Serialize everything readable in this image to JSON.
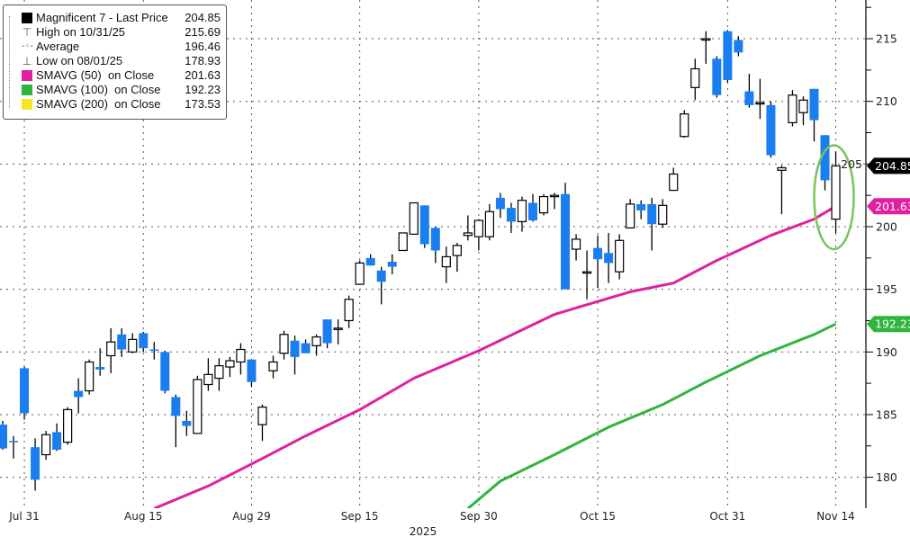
{
  "legend": {
    "title": "Magnificent 7 - Last Price",
    "last_price": "204.85",
    "items": [
      {
        "label": "High on 10/31/25",
        "value": "215.69",
        "icon": "high-marker-icon"
      },
      {
        "label": "Average",
        "value": "196.46",
        "icon": "average-marker-icon"
      },
      {
        "label": "Low on 08/01/25",
        "value": "178.93",
        "icon": "low-marker-icon"
      },
      {
        "label": "SMAVG (50)  on Close",
        "value": "201.63",
        "color": "#e020a0"
      },
      {
        "label": "SMAVG (100)  on Close",
        "value": "192.23",
        "color": "#2db53c"
      },
      {
        "label": "SMAVG (200)  on Close",
        "value": "173.53",
        "color": "#f5e625"
      }
    ]
  },
  "chart_data": {
    "type": "candlestick",
    "title": "",
    "xlabel": "2025",
    "ylabel": "",
    "ylim": [
      177.53,
      218.09
    ],
    "y_ticks": [
      180,
      185,
      190,
      195,
      200,
      205,
      210,
      215
    ],
    "y_tick_labels": [
      "180",
      "185",
      "190",
      "195",
      "200",
      "205",
      "210",
      "215"
    ],
    "x_tick_labels": [
      {
        "date": "2025-07-31",
        "label": "Jul 31"
      },
      {
        "date": "2025-08-15",
        "label": "Aug 15"
      },
      {
        "date": "2025-08-29",
        "label": "Aug 29"
      },
      {
        "date": "2025-09-15",
        "label": "Sep 15"
      },
      {
        "date": "2025-09-30",
        "label": "Sep 30"
      },
      {
        "date": "2025-10-15",
        "label": "Oct 15"
      },
      {
        "date": "2025-10-31",
        "label": "Oct 31"
      },
      {
        "date": "2025-11-14",
        "label": "Nov 14"
      }
    ],
    "grid": true,
    "axis_side": "right",
    "legend_position": "top-left",
    "colors": {
      "up": "#ffffff",
      "down": "#1a7ef0",
      "wick": "#000000",
      "sma50": "#e020a0",
      "sma100": "#2db53c",
      "annotation": "#7cc35c"
    },
    "candle_fields": [
      "date",
      "open",
      "high",
      "low",
      "close"
    ],
    "candles": [
      [
        "2025-07-29",
        184.2,
        184.5,
        182.2,
        182.3
      ],
      [
        "2025-07-30",
        182.9,
        183.3,
        181.5,
        182.8
      ],
      [
        "2025-07-31",
        188.7,
        188.8,
        184.6,
        185.1
      ],
      [
        "2025-08-01",
        182.4,
        183.1,
        178.93,
        179.8
      ],
      [
        "2025-08-04",
        181.8,
        183.7,
        181.4,
        183.4
      ],
      [
        "2025-08-05",
        183.6,
        184.3,
        182.1,
        182.2
      ],
      [
        "2025-08-06",
        182.8,
        185.6,
        182.6,
        185.4
      ],
      [
        "2025-08-07",
        186.9,
        187.9,
        185.1,
        186.4
      ],
      [
        "2025-08-08",
        186.9,
        189.4,
        186.6,
        189.2
      ],
      [
        "2025-08-11",
        188.8,
        190.3,
        188.1,
        188.6
      ],
      [
        "2025-08-12",
        189.7,
        191.9,
        188.3,
        190.8
      ],
      [
        "2025-08-13",
        191.4,
        191.9,
        189.6,
        190.2
      ],
      [
        "2025-08-14",
        190.0,
        191.5,
        189.9,
        191.0
      ],
      [
        "2025-08-15",
        191.5,
        191.6,
        190.0,
        190.3
      ],
      [
        "2025-08-18",
        190.2,
        190.8,
        189.4,
        190.1
      ],
      [
        "2025-08-19",
        190.0,
        190.1,
        186.7,
        186.9
      ],
      [
        "2025-08-20",
        186.4,
        186.6,
        182.4,
        184.9
      ],
      [
        "2025-08-21",
        184.5,
        185.3,
        183.3,
        184.1
      ],
      [
        "2025-08-22",
        183.5,
        188.1,
        183.5,
        187.8
      ],
      [
        "2025-08-25",
        187.4,
        189.5,
        186.9,
        188.2
      ],
      [
        "2025-08-26",
        187.9,
        189.5,
        186.9,
        188.9
      ],
      [
        "2025-08-27",
        188.8,
        189.6,
        188.0,
        189.3
      ],
      [
        "2025-08-28",
        189.2,
        190.7,
        188.2,
        190.2
      ],
      [
        "2025-08-29",
        189.4,
        189.4,
        187.2,
        187.6
      ],
      [
        "2025-09-02",
        184.2,
        185.8,
        182.9,
        185.6
      ],
      [
        "2025-09-03",
        188.5,
        189.7,
        187.9,
        189.2
      ],
      [
        "2025-09-04",
        189.9,
        191.7,
        189.4,
        191.4
      ],
      [
        "2025-09-05",
        190.9,
        191.3,
        188.2,
        189.6
      ],
      [
        "2025-09-08",
        190.7,
        191.0,
        189.9,
        189.9
      ],
      [
        "2025-09-09",
        190.5,
        191.4,
        189.7,
        191.2
      ],
      [
        "2025-09-10",
        192.6,
        192.6,
        190.3,
        190.7
      ],
      [
        "2025-09-11",
        191.9,
        192.6,
        190.6,
        191.9
      ],
      [
        "2025-09-12",
        192.5,
        194.5,
        191.9,
        194.2
      ],
      [
        "2025-09-15",
        195.4,
        197.3,
        195.4,
        197.1
      ],
      [
        "2025-09-16",
        197.5,
        197.8,
        196.9,
        196.9
      ],
      [
        "2025-09-17",
        196.5,
        196.8,
        193.8,
        195.6
      ],
      [
        "2025-09-18",
        197.2,
        197.8,
        196.2,
        196.8
      ],
      [
        "2025-09-19",
        198.1,
        199.5,
        198.1,
        199.5
      ],
      [
        "2025-09-22",
        199.4,
        201.9,
        199.4,
        201.9
      ],
      [
        "2025-09-23",
        201.7,
        201.7,
        198.3,
        198.6
      ],
      [
        "2025-09-24",
        199.9,
        200.0,
        197.1,
        198.1
      ],
      [
        "2025-09-25",
        196.8,
        198.4,
        195.5,
        197.6
      ],
      [
        "2025-09-26",
        197.7,
        198.7,
        196.4,
        198.5
      ],
      [
        "2025-09-29",
        199.3,
        200.9,
        198.9,
        199.5
      ],
      [
        "2025-09-30",
        199.2,
        200.6,
        198.1,
        200.5
      ],
      [
        "2025-10-01",
        199.2,
        201.8,
        198.9,
        201.2
      ],
      [
        "2025-10-02",
        202.3,
        202.7,
        200.7,
        201.4
      ],
      [
        "2025-10-03",
        201.5,
        201.9,
        199.5,
        200.4
      ],
      [
        "2025-10-06",
        200.4,
        202.4,
        199.6,
        202.1
      ],
      [
        "2025-10-07",
        201.9,
        202.6,
        200.4,
        200.5
      ],
      [
        "2025-10-08",
        201.1,
        202.6,
        200.9,
        202.4
      ],
      [
        "2025-10-09",
        202.4,
        202.7,
        201.4,
        202.5
      ],
      [
        "2025-10-10",
        202.6,
        203.5,
        195.0,
        195.0
      ],
      [
        "2025-10-13",
        198.2,
        199.4,
        197.3,
        199.0
      ],
      [
        "2025-10-14",
        196.4,
        198.1,
        194.2,
        196.4
      ],
      [
        "2025-10-15",
        198.3,
        199.3,
        195.1,
        197.4
      ],
      [
        "2025-10-16",
        197.9,
        199.5,
        195.5,
        197.1
      ],
      [
        "2025-10-17",
        196.4,
        199.4,
        195.8,
        198.9
      ],
      [
        "2025-10-20",
        199.9,
        202.2,
        199.9,
        201.8
      ],
      [
        "2025-10-21",
        201.8,
        202.1,
        200.6,
        201.3
      ],
      [
        "2025-10-22",
        201.8,
        202.3,
        198.1,
        200.2
      ],
      [
        "2025-10-23",
        200.2,
        202.2,
        199.9,
        201.7
      ],
      [
        "2025-10-24",
        202.9,
        204.7,
        202.9,
        204.2
      ],
      [
        "2025-10-27",
        207.2,
        209.3,
        207.1,
        209.0
      ],
      [
        "2025-10-28",
        211.1,
        213.4,
        210.1,
        212.6
      ],
      [
        "2025-10-29",
        214.9,
        215.6,
        213.0,
        215.0
      ],
      [
        "2025-10-30",
        213.4,
        213.6,
        210.3,
        210.5
      ],
      [
        "2025-10-31",
        215.6,
        215.69,
        211.5,
        211.7
      ],
      [
        "2025-11-03",
        214.9,
        215.2,
        213.6,
        213.9
      ],
      [
        "2025-11-04",
        210.8,
        212.2,
        209.5,
        209.7
      ],
      [
        "2025-11-05",
        209.9,
        211.8,
        208.6,
        209.9
      ],
      [
        "2025-11-06",
        209.7,
        210.0,
        205.5,
        205.7
      ],
      [
        "2025-11-07",
        204.5,
        204.9,
        201.0,
        204.7
      ],
      [
        "2025-11-10",
        208.3,
        210.9,
        208.0,
        210.5
      ],
      [
        "2025-11-11",
        209.1,
        210.4,
        208.1,
        210.1
      ],
      [
        "2025-11-12",
        211.0,
        211.0,
        206.8,
        208.5
      ],
      [
        "2025-11-13",
        207.3,
        207.3,
        202.9,
        203.7
      ],
      [
        "2025-11-14",
        200.6,
        206.0,
        199.5,
        204.85
      ]
    ],
    "series": [
      {
        "name": "SMAVG (50)  on Close",
        "key": "sma50",
        "points": [
          [
            "2025-08-18",
            177.5
          ],
          [
            "2025-08-25",
            179.3
          ],
          [
            "2025-09-02",
            181.5
          ],
          [
            "2025-09-08",
            183.3
          ],
          [
            "2025-09-15",
            185.4
          ],
          [
            "2025-09-22",
            187.9
          ],
          [
            "2025-09-30",
            190.1
          ],
          [
            "2025-10-09",
            193.0
          ],
          [
            "2025-10-20",
            194.8
          ],
          [
            "2025-10-24",
            195.5
          ],
          [
            "2025-10-30",
            197.3
          ],
          [
            "2025-11-06",
            199.3
          ],
          [
            "2025-11-12",
            200.6
          ],
          [
            "2025-11-14",
            201.63
          ]
        ]
      },
      {
        "name": "SMAVG (100)  on Close",
        "key": "sma100",
        "points": [
          [
            "2025-09-29",
            177.5
          ],
          [
            "2025-10-02",
            179.7
          ],
          [
            "2025-10-09",
            181.8
          ],
          [
            "2025-10-16",
            184.0
          ],
          [
            "2025-10-23",
            185.8
          ],
          [
            "2025-10-29",
            187.6
          ],
          [
            "2025-11-05",
            189.7
          ],
          [
            "2025-11-12",
            191.4
          ],
          [
            "2025-11-14",
            192.23
          ]
        ]
      }
    ],
    "value_tags": [
      {
        "label": "204.85",
        "value": 204.85,
        "color": "#000000"
      },
      {
        "label": "201.63",
        "value": 201.63,
        "color": "#e020a0"
      },
      {
        "label": "192.23",
        "value": 192.23,
        "color": "#2db53c"
      }
    ],
    "annotation": {
      "type": "ellipse",
      "date": "2025-11-14",
      "low": 198.2,
      "high": 206.5
    }
  }
}
